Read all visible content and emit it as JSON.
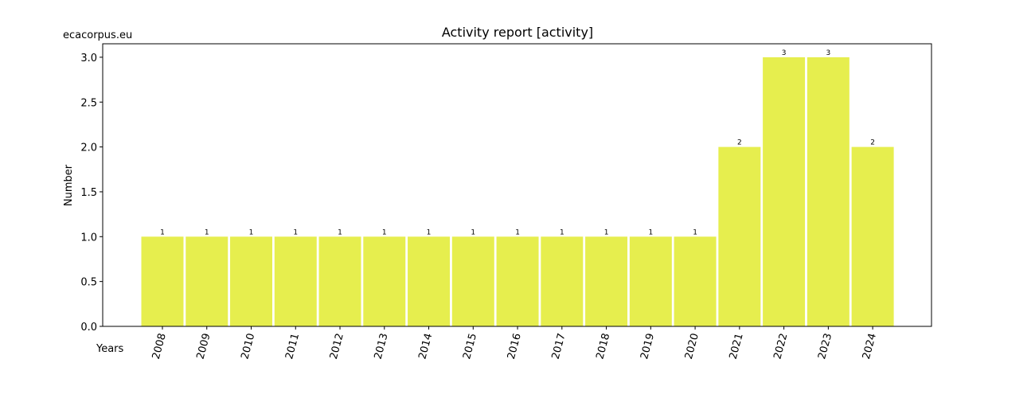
{
  "chart_data": {
    "type": "bar",
    "title": "Activity report [activity]",
    "source": "ecacorpus.eu",
    "x_label": "Years",
    "y_label": "Number",
    "categories": [
      "2008",
      "2009",
      "2010",
      "2011",
      "2012",
      "2013",
      "2014",
      "2015",
      "2016",
      "2017",
      "2018",
      "2019",
      "2020",
      "2021",
      "2022",
      "2023",
      "2024"
    ],
    "values": [
      1,
      1,
      1,
      1,
      1,
      1,
      1,
      1,
      1,
      1,
      1,
      1,
      1,
      2,
      3,
      3,
      2
    ],
    "color": "#e6ee4e",
    "ylim": [
      0,
      3.15
    ],
    "yticks": [
      {
        "value": 0,
        "label": "0.0"
      },
      {
        "value": 0.5,
        "label": "0.5"
      },
      {
        "value": 1,
        "label": "1.0"
      },
      {
        "value": 1.5,
        "label": "1.5"
      },
      {
        "value": 2,
        "label": "2.0"
      },
      {
        "value": 2.5,
        "label": "2.5"
      },
      {
        "value": 3,
        "label": "3.0"
      }
    ]
  }
}
